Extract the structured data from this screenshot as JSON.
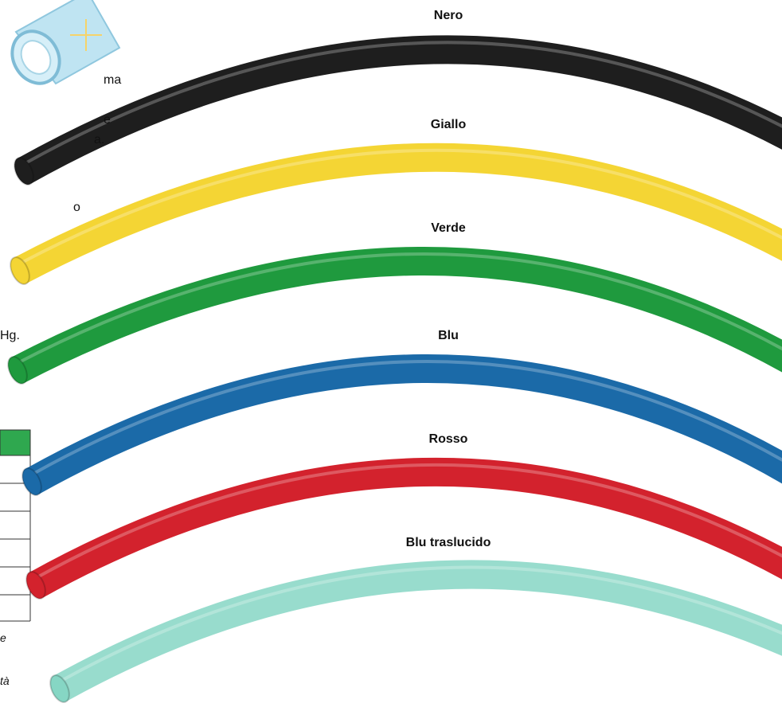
{
  "tubes": [
    {
      "label": "Nero",
      "color": "#1e1e1e"
    },
    {
      "label": "Giallo",
      "color": "#f4d534"
    },
    {
      "label": "Verde",
      "color": "#1f9a3e"
    },
    {
      "label": "Blu",
      "color": "#1b6aa8"
    },
    {
      "label": "Rosso",
      "color": "#d3222d"
    },
    {
      "label": "Blu traslucido",
      "color": "#86d6c4"
    }
  ],
  "side_text": [
    "ma",
    "e",
    "a.",
    "o",
    "Hg."
  ],
  "notes": [
    "e",
    "tà"
  ]
}
